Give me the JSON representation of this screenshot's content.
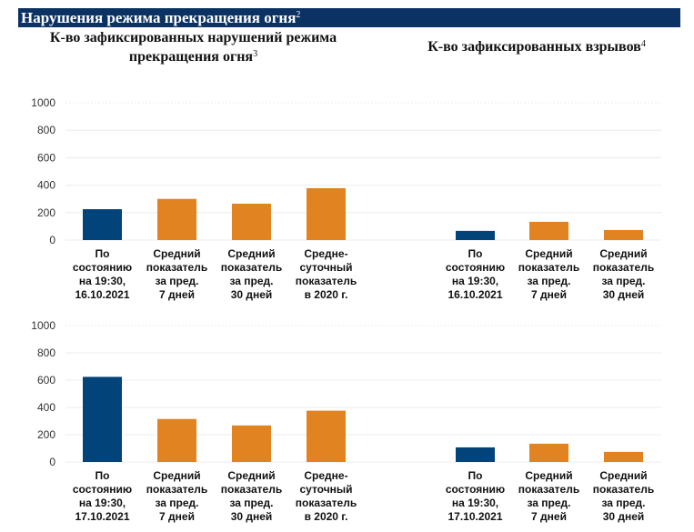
{
  "header": {
    "title": "Нарушения режима прекращения огня",
    "footnote": "2"
  },
  "titles": {
    "left_line1": "К-во зафиксированных нарушений режима",
    "left_line2": "прекращения огня",
    "left_footnote": "3",
    "right": "К-во зафиксированных взрывов",
    "right_footnote": "4"
  },
  "colors": {
    "current": "#02437a",
    "average": "#e08320",
    "header": "#0b3263",
    "grid": "#ececec"
  },
  "chart_data": [
    {
      "type": "bar",
      "title": "К-во зафиксированных нарушений режима прекращения огня (16.10.2021)",
      "ylim": [
        0,
        1000
      ],
      "yticks": [
        "1000",
        "800",
        "600",
        "400",
        "200",
        "0"
      ],
      "categories": [
        [
          "По",
          "состоянию",
          "на 19:30,",
          "16.10.2021"
        ],
        [
          "Средний",
          "показатель",
          "за пред.",
          "7 дней"
        ],
        [
          "Средний",
          "показатель",
          "за пред.",
          "30 дней"
        ],
        [
          "Средне-",
          "суточный",
          "показатель",
          "в 2020 г."
        ]
      ],
      "values": [
        225,
        300,
        265,
        378
      ],
      "color_keys": [
        "current",
        "average",
        "average",
        "average"
      ]
    },
    {
      "type": "bar",
      "title": "К-во зафиксированных взрывов (16.10.2021)",
      "ylim": [
        0,
        1000
      ],
      "categories": [
        [
          "По",
          "состоянию",
          "на 19:30,",
          "16.10.2021"
        ],
        [
          "Средний",
          "показатель",
          "за пред.",
          "7 дней"
        ],
        [
          "Средний",
          "показатель",
          "за пред.",
          "30 дней"
        ]
      ],
      "values": [
        67,
        133,
        73
      ],
      "color_keys": [
        "current",
        "average",
        "average"
      ]
    },
    {
      "type": "bar",
      "title": "К-во зафиксированных нарушений режима прекращения огня (17.10.2021)",
      "ylim": [
        0,
        1000
      ],
      "yticks": [
        "1000",
        "800",
        "600",
        "400",
        "200",
        "0"
      ],
      "categories": [
        [
          "По",
          "состоянию",
          "на 19:30,",
          "17.10.2021"
        ],
        [
          "Средний",
          "показатель",
          "за пред.",
          "7 дней"
        ],
        [
          "Средний",
          "показатель",
          "за пред.",
          "30 дней"
        ],
        [
          "Средне-",
          "суточный",
          "показатель",
          "в 2020 г."
        ]
      ],
      "values": [
        624,
        315,
        268,
        376
      ],
      "color_keys": [
        "current",
        "average",
        "average",
        "average"
      ]
    },
    {
      "type": "bar",
      "title": "К-во зафиксированных взрывов (17.10.2021)",
      "ylim": [
        0,
        1000
      ],
      "categories": [
        [
          "По",
          "состоянию",
          "на 19:30,",
          "17.10.2021"
        ],
        [
          "Средний",
          "показатель",
          "за пред.",
          "7 дней"
        ],
        [
          "Средний",
          "показатель",
          "за пред.",
          "30 дней"
        ]
      ],
      "values": [
        107,
        134,
        74
      ],
      "color_keys": [
        "current",
        "average",
        "average"
      ]
    }
  ]
}
